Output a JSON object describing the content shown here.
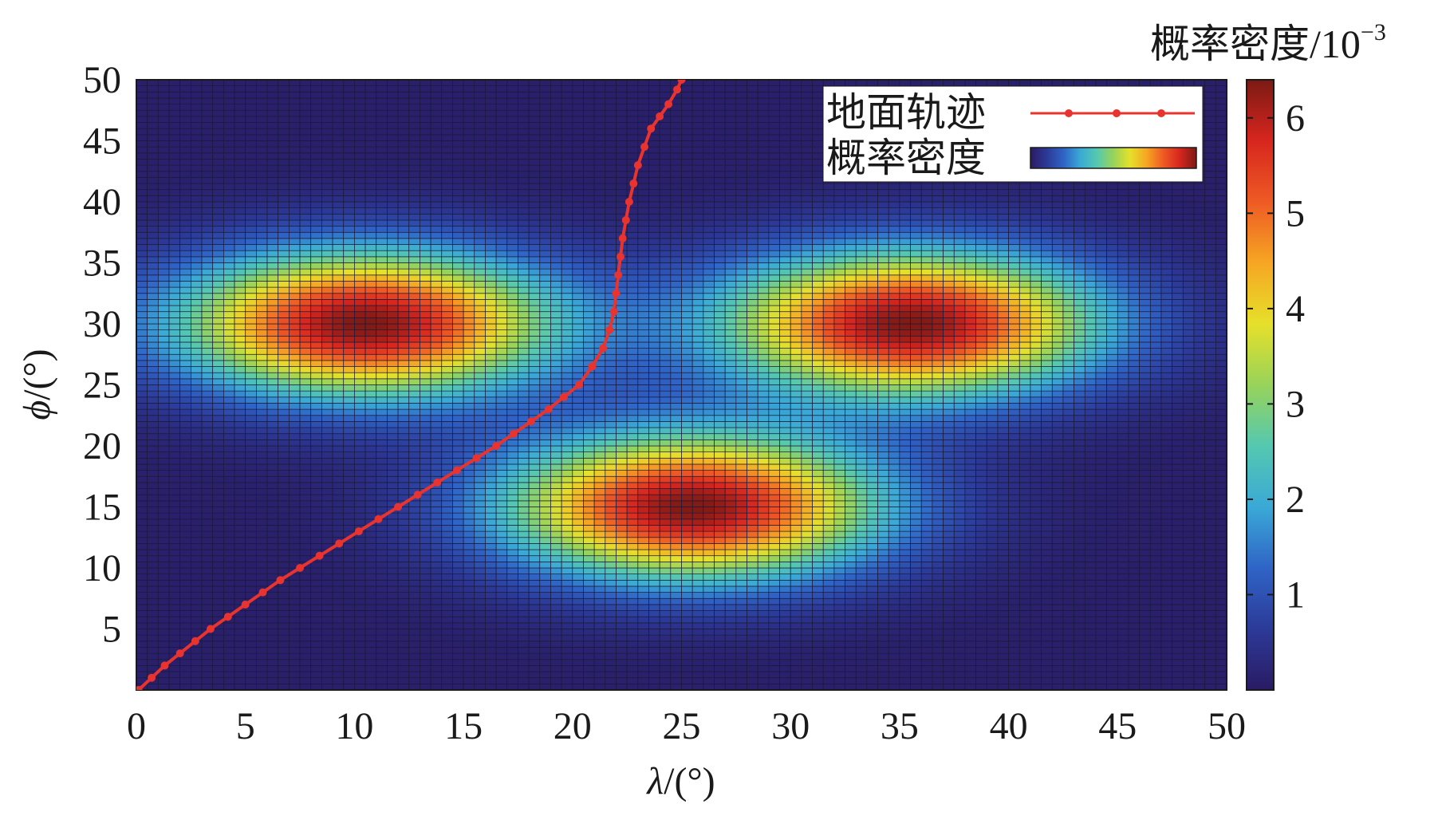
{
  "chart_data": {
    "type": "heatmap",
    "title": "",
    "xlabel_sym": "λ",
    "xlabel_unit": "/(°)",
    "ylabel_sym": "ϕ",
    "ylabel_unit": "/(°)",
    "xlim": [
      0,
      50
    ],
    "ylim": [
      0,
      50
    ],
    "x_ticks": [
      "0",
      "5",
      "10",
      "15",
      "20",
      "25",
      "30",
      "35",
      "40",
      "45",
      "50"
    ],
    "y_ticks": [
      "5",
      "10",
      "15",
      "20",
      "25",
      "30",
      "35",
      "40",
      "45",
      "50"
    ],
    "grid": "cell mesh 0.5°",
    "colormap": "jet",
    "colors": {
      "trajectory": "#e8332e",
      "mesh_line": "#1a1a3a",
      "jet_stops": [
        "#2a1b63",
        "#2c3a98",
        "#2f64c6",
        "#3aa9d6",
        "#55c8b0",
        "#98d35a",
        "#e6e02a",
        "#f6a623",
        "#ee5a24",
        "#d7261e",
        "#7b1a14"
      ]
    },
    "colorbar": {
      "title_main": "概率密度/10",
      "title_exp": "−3",
      "range": [
        0,
        6.4
      ],
      "ticks": [
        1,
        2,
        3,
        4,
        5,
        6
      ],
      "tick_labels": [
        "1",
        "2",
        "3",
        "4",
        "5",
        "6"
      ],
      "orientation": "vertical-right"
    },
    "density_components": [
      {
        "center_lambda": 10.5,
        "center_phi": 30,
        "sigma_lambda": 6.0,
        "sigma_phi": 4.2,
        "peak": 6.3
      },
      {
        "center_lambda": 35.5,
        "center_phi": 30,
        "sigma_lambda": 6.0,
        "sigma_phi": 4.2,
        "peak": 6.3
      },
      {
        "center_lambda": 25.5,
        "center_phi": 15,
        "sigma_lambda": 6.0,
        "sigma_phi": 4.2,
        "peak": 6.3
      }
    ],
    "legend": {
      "position": "top-right",
      "entries": [
        {
          "label": "地面轨迹",
          "kind": "line-with-markers"
        },
        {
          "label": "概率密度",
          "kind": "colormap-swatch"
        }
      ]
    },
    "series": [
      {
        "name": "地面轨迹",
        "x": [
          0.1,
          0.7,
          1.3,
          2.0,
          2.7,
          3.4,
          4.2,
          5.0,
          5.8,
          6.6,
          7.5,
          8.4,
          9.3,
          10.2,
          11.1,
          12.0,
          12.9,
          13.8,
          14.7,
          15.6,
          16.5,
          17.3,
          18.1,
          18.9,
          19.6,
          20.3,
          20.9,
          21.4,
          21.7,
          21.9,
          22.0,
          22.1,
          22.2,
          22.3,
          22.45,
          22.6,
          22.8,
          23.0,
          23.3,
          23.6,
          24.0,
          24.4,
          24.8,
          25.0
        ],
        "y": [
          0.0,
          1.0,
          2.0,
          3.0,
          4.0,
          5.0,
          6.0,
          7.0,
          8.0,
          9.0,
          10.0,
          11.0,
          12.0,
          13.0,
          14.0,
          15.0,
          16.0,
          17.0,
          18.0,
          19.0,
          20.0,
          21.0,
          22.0,
          23.0,
          24.0,
          25.0,
          26.5,
          28.0,
          29.5,
          31.0,
          32.5,
          34.0,
          35.5,
          37.0,
          38.5,
          40.0,
          41.5,
          43.0,
          44.5,
          46.0,
          47.0,
          48.0,
          49.2,
          50.0
        ]
      }
    ]
  }
}
